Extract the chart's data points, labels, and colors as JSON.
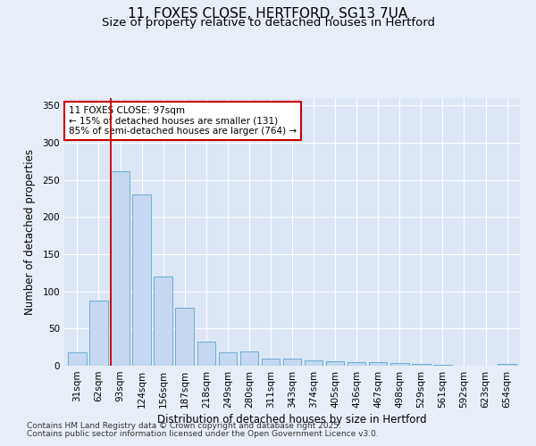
{
  "title_line1": "11, FOXES CLOSE, HERTFORD, SG13 7UA",
  "title_line2": "Size of property relative to detached houses in Hertford",
  "xlabel": "Distribution of detached houses by size in Hertford",
  "ylabel": "Number of detached properties",
  "categories": [
    "31sqm",
    "62sqm",
    "93sqm",
    "124sqm",
    "156sqm",
    "187sqm",
    "218sqm",
    "249sqm",
    "280sqm",
    "311sqm",
    "343sqm",
    "374sqm",
    "405sqm",
    "436sqm",
    "467sqm",
    "498sqm",
    "529sqm",
    "561sqm",
    "592sqm",
    "623sqm",
    "654sqm"
  ],
  "values": [
    18,
    88,
    262,
    230,
    120,
    78,
    32,
    18,
    19,
    10,
    10,
    7,
    6,
    5,
    5,
    4,
    2,
    1,
    0,
    0,
    2
  ],
  "bar_color": "#c5d8f0",
  "bar_edge_color": "#6aaed6",
  "highlight_bar_index": 2,
  "highlight_color": "#cc0000",
  "annotation_title": "11 FOXES CLOSE: 97sqm",
  "annotation_line1": "← 15% of detached houses are smaller (131)",
  "annotation_line2": "85% of semi-detached houses are larger (764) →",
  "annotation_box_facecolor": "#ffffff",
  "annotation_box_edgecolor": "#cc0000",
  "ylim": [
    0,
    360
  ],
  "yticks": [
    0,
    50,
    100,
    150,
    200,
    250,
    300,
    350
  ],
  "background_color": "#e8eef8",
  "plot_bg_color": "#dce6f5",
  "grid_color": "#ffffff",
  "footer_line1": "Contains HM Land Registry data © Crown copyright and database right 2025.",
  "footer_line2": "Contains public sector information licensed under the Open Government Licence v3.0.",
  "title_fontsize": 11,
  "subtitle_fontsize": 9.5,
  "axis_label_fontsize": 8.5,
  "tick_fontsize": 7.5,
  "annotation_fontsize": 7.5,
  "footer_fontsize": 6.5
}
